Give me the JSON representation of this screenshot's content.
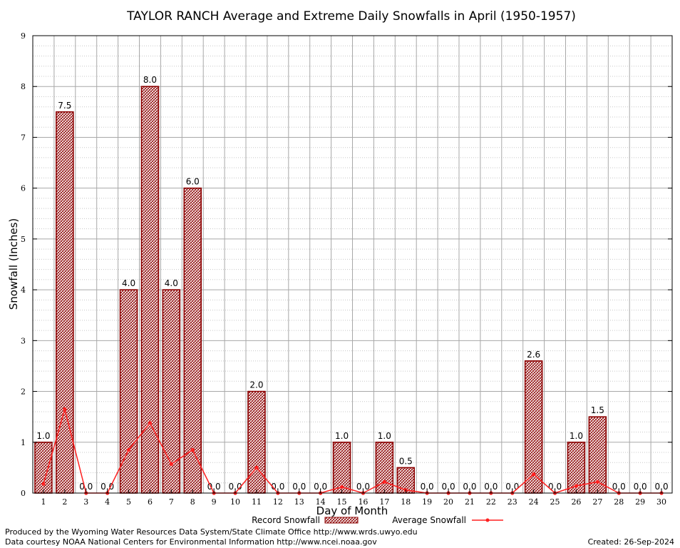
{
  "chart_data": {
    "type": "bar",
    "title": "TAYLOR RANCH Average and Extreme Daily Snowfalls in April (1950-1957)",
    "xlabel": "Day of Month",
    "ylabel": "Snowfall (Inches)",
    "ylim": [
      0,
      9
    ],
    "yticks": [
      "0",
      "1",
      "2",
      "3",
      "4",
      "5",
      "6",
      "7",
      "8",
      "9"
    ],
    "categories": [
      "1",
      "2",
      "3",
      "4",
      "5",
      "6",
      "7",
      "8",
      "9",
      "10",
      "11",
      "12",
      "13",
      "14",
      "15",
      "16",
      "17",
      "18",
      "19",
      "20",
      "21",
      "22",
      "23",
      "24",
      "25",
      "26",
      "27",
      "28",
      "29",
      "30"
    ],
    "series": [
      {
        "name": "Record Snowfall",
        "kind": "bar",
        "color": "#8b0000",
        "values": [
          1.0,
          7.5,
          0.0,
          0.0,
          4.0,
          8.0,
          4.0,
          6.0,
          0.0,
          0.0,
          2.0,
          0.0,
          0.0,
          0.0,
          1.0,
          0.0,
          1.0,
          0.5,
          0.0,
          0.0,
          0.0,
          0.0,
          0.0,
          2.6,
          0.0,
          1.0,
          1.5,
          0.0,
          0.0,
          0.0
        ],
        "labels": [
          "1.0",
          "7.5",
          "0.0",
          "0.0",
          "4.0",
          "8.0",
          "4.0",
          "6.0",
          "0.0",
          "0.0",
          "2.0",
          "0.0",
          "0.0",
          "0.0",
          "1.0",
          "0.0",
          "1.0",
          "0.5",
          "0.0",
          "0.0",
          "0.0",
          "0.0",
          "0.0",
          "2.6",
          "0.0",
          "1.0",
          "1.5",
          "0.0",
          "0.0",
          "0.0"
        ]
      },
      {
        "name": "Average Snowfall",
        "kind": "line",
        "color": "#ff2020",
        "values": [
          0.18,
          1.65,
          0.0,
          0.0,
          0.85,
          1.38,
          0.57,
          0.85,
          0.0,
          0.0,
          0.5,
          0.0,
          0.0,
          0.0,
          0.12,
          0.0,
          0.22,
          0.06,
          0.0,
          0.0,
          0.0,
          0.0,
          0.0,
          0.37,
          0.0,
          0.14,
          0.22,
          0.0,
          0.0,
          0.0
        ]
      }
    ],
    "legend": {
      "position": "bottom-center",
      "record_label": "Record Snowfall",
      "average_label": "Average Snowfall"
    },
    "grid": true
  },
  "footer": {
    "produced_by": "Produced by the Wyoming Water Resources Data System/State Climate Office http://www.wrds.uwyo.edu",
    "data_courtesy": "Data courtesy NOAA National Centers for Environmental Information http://www.ncei.noaa.gov",
    "created": "Created:  26-Sep-2024"
  }
}
